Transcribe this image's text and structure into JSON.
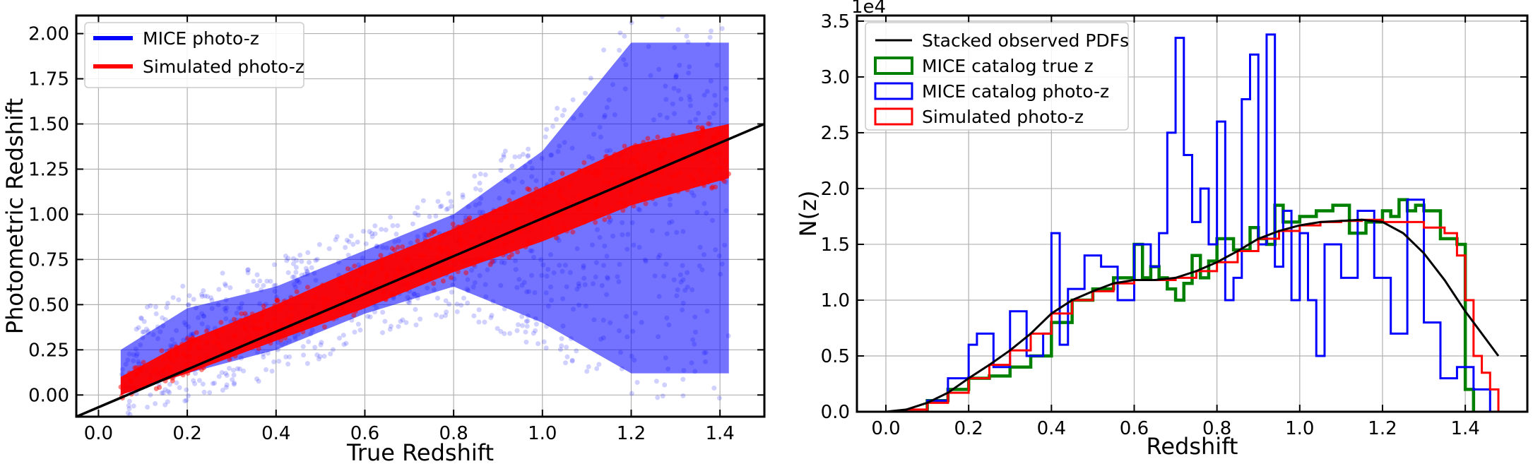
{
  "chart_data": [
    {
      "type": "scatter",
      "xlabel": "True Redshift",
      "ylabel": "Photometric Redshift",
      "xlim": [
        -0.05,
        1.5
      ],
      "ylim": [
        -0.12,
        2.1
      ],
      "xticks": [
        "0.0",
        "0.2",
        "0.4",
        "0.6",
        "0.8",
        "1.0",
        "1.2",
        "1.4"
      ],
      "xtick_values": [
        0.0,
        0.2,
        0.4,
        0.6,
        0.8,
        1.0,
        1.2,
        1.4
      ],
      "yticks": [
        "0.00",
        "0.25",
        "0.50",
        "0.75",
        "1.00",
        "1.25",
        "1.50",
        "1.75",
        "2.00"
      ],
      "ytick_values": [
        0.0,
        0.25,
        0.5,
        0.75,
        1.0,
        1.25,
        1.5,
        1.75,
        2.0
      ],
      "grid": true,
      "legend_position": "top-left",
      "series": [
        {
          "name": "MICE photo-z",
          "color": "#0000ff",
          "band": {
            "x": [
              0.05,
              0.2,
              0.4,
              0.6,
              0.8,
              1.0,
              1.2,
              1.42
            ],
            "y_low": [
              0.0,
              0.12,
              0.25,
              0.45,
              0.6,
              0.4,
              0.12,
              0.12
            ],
            "y_high": [
              0.25,
              0.48,
              0.6,
              0.8,
              1.0,
              1.35,
              1.95,
              1.95
            ]
          }
        },
        {
          "name": "Simulated photo-z",
          "color": "#ff0000",
          "band": {
            "x": [
              0.05,
              0.2,
              0.4,
              0.6,
              0.8,
              1.0,
              1.2,
              1.42
            ],
            "y_low": [
              0.0,
              0.12,
              0.3,
              0.48,
              0.68,
              0.85,
              1.05,
              1.2
            ],
            "y_high": [
              0.1,
              0.3,
              0.5,
              0.72,
              0.92,
              1.15,
              1.38,
              1.5
            ]
          }
        }
      ],
      "reference_line": {
        "color": "#000000",
        "x": [
          -0.05,
          1.5
        ],
        "y": [
          -0.12,
          1.5
        ]
      }
    },
    {
      "type": "line",
      "xlabel": "Redshift",
      "ylabel": "N(z)",
      "scale_label": "1e4",
      "xlim": [
        -0.07,
        1.55
      ],
      "ylim": [
        0,
        3.55
      ],
      "xticks": [
        "0.0",
        "0.2",
        "0.4",
        "0.6",
        "0.8",
        "1.0",
        "1.2",
        "1.4"
      ],
      "xtick_values": [
        0.0,
        0.2,
        0.4,
        0.6,
        0.8,
        1.0,
        1.2,
        1.4
      ],
      "yticks": [
        "0.0",
        "0.5",
        "1.0",
        "1.5",
        "2.0",
        "2.5",
        "3.0",
        "3.5"
      ],
      "ytick_values": [
        0.0,
        0.5,
        1.0,
        1.5,
        2.0,
        2.5,
        3.0,
        3.5
      ],
      "grid": true,
      "legend_position": "top-left",
      "series": [
        {
          "name": "Stacked observed PDFs",
          "color": "#000000",
          "style": "smooth",
          "x": [
            0.0,
            0.05,
            0.1,
            0.15,
            0.2,
            0.25,
            0.3,
            0.35,
            0.4,
            0.45,
            0.5,
            0.55,
            0.6,
            0.65,
            0.7,
            0.75,
            0.8,
            0.85,
            0.9,
            0.95,
            1.0,
            1.05,
            1.1,
            1.15,
            1.2,
            1.25,
            1.3,
            1.35,
            1.4,
            1.45,
            1.48
          ],
          "y": [
            0.0,
            0.02,
            0.08,
            0.17,
            0.3,
            0.42,
            0.55,
            0.7,
            0.88,
            1.0,
            1.08,
            1.15,
            1.18,
            1.18,
            1.2,
            1.26,
            1.34,
            1.44,
            1.55,
            1.62,
            1.67,
            1.7,
            1.71,
            1.72,
            1.7,
            1.6,
            1.42,
            1.18,
            0.9,
            0.65,
            0.5
          ]
        },
        {
          "name": "MICE catalog true z",
          "color": "#008000",
          "style": "step",
          "x": [
            0.1,
            0.15,
            0.2,
            0.25,
            0.3,
            0.35,
            0.4,
            0.45,
            0.5,
            0.55,
            0.6,
            0.62,
            0.64,
            0.66,
            0.68,
            0.7,
            0.72,
            0.74,
            0.76,
            0.78,
            0.8,
            0.84,
            0.88,
            0.9,
            0.92,
            0.94,
            0.96,
            1.0,
            1.04,
            1.08,
            1.12,
            1.16,
            1.2,
            1.22,
            1.24,
            1.26,
            1.28,
            1.3,
            1.34,
            1.38,
            1.4,
            1.42
          ],
          "y": [
            0.1,
            0.2,
            0.3,
            0.32,
            0.4,
            0.5,
            0.8,
            1.0,
            1.1,
            1.2,
            1.5,
            1.2,
            1.3,
            1.2,
            1.1,
            1.0,
            1.15,
            1.4,
            1.2,
            1.35,
            1.55,
            1.45,
            1.65,
            1.55,
            1.5,
            1.85,
            1.7,
            1.75,
            1.8,
            1.85,
            1.6,
            1.7,
            1.8,
            1.75,
            1.9,
            1.8,
            1.85,
            1.8,
            1.55,
            1.5,
            0.2,
            0.0
          ]
        },
        {
          "name": "MICE catalog photo-z",
          "color": "#0000ff",
          "style": "step",
          "x": [
            0.1,
            0.15,
            0.2,
            0.22,
            0.26,
            0.3,
            0.34,
            0.38,
            0.4,
            0.42,
            0.44,
            0.48,
            0.52,
            0.56,
            0.6,
            0.64,
            0.66,
            0.68,
            0.7,
            0.72,
            0.74,
            0.76,
            0.78,
            0.8,
            0.82,
            0.84,
            0.86,
            0.88,
            0.9,
            0.92,
            0.94,
            0.96,
            0.98,
            1.0,
            1.02,
            1.04,
            1.06,
            1.1,
            1.14,
            1.18,
            1.22,
            1.26,
            1.3,
            1.34,
            1.38,
            1.42,
            1.46
          ],
          "y": [
            0.1,
            0.3,
            0.6,
            0.7,
            0.4,
            0.9,
            0.5,
            0.7,
            1.6,
            0.6,
            1.1,
            1.4,
            1.3,
            1.0,
            1.5,
            1.3,
            1.6,
            2.5,
            3.35,
            2.3,
            1.7,
            2.0,
            1.5,
            2.6,
            1.0,
            1.2,
            2.8,
            3.2,
            1.5,
            3.38,
            1.3,
            1.8,
            1.0,
            1.6,
            1.0,
            0.5,
            1.5,
            1.2,
            1.8,
            1.2,
            0.7,
            1.9,
            0.8,
            0.3,
            0.4,
            0.2,
            0.2
          ]
        },
        {
          "name": "Simulated photo-z",
          "color": "#ff0000",
          "style": "step",
          "x": [
            0.05,
            0.1,
            0.15,
            0.2,
            0.25,
            0.3,
            0.35,
            0.4,
            0.45,
            0.5,
            0.55,
            0.6,
            0.65,
            0.7,
            0.75,
            0.8,
            0.85,
            0.9,
            0.95,
            1.0,
            1.05,
            1.1,
            1.15,
            1.2,
            1.25,
            1.3,
            1.35,
            1.38,
            1.4,
            1.42,
            1.44,
            1.46,
            1.48
          ],
          "y": [
            0.02,
            0.08,
            0.17,
            0.3,
            0.42,
            0.55,
            0.7,
            0.88,
            1.0,
            1.08,
            1.15,
            1.18,
            1.18,
            1.2,
            1.26,
            1.34,
            1.44,
            1.55,
            1.62,
            1.67,
            1.7,
            1.71,
            1.72,
            1.7,
            1.7,
            1.65,
            1.6,
            1.4,
            1.0,
            0.5,
            0.35,
            0.2,
            0.0
          ]
        }
      ]
    }
  ]
}
